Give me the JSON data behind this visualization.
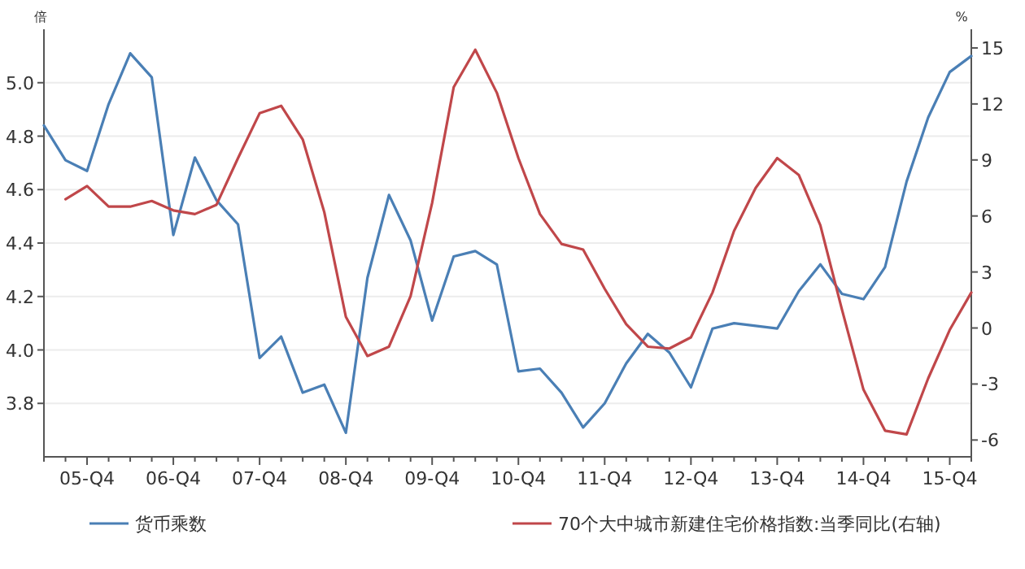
{
  "chart_data": {
    "type": "line",
    "ylabel": "倍",
    "y2label": "%",
    "categories": [
      null,
      null,
      "05-Q4",
      null,
      null,
      null,
      "06-Q4",
      null,
      null,
      null,
      "07-Q4",
      null,
      null,
      null,
      "08-Q4",
      null,
      null,
      null,
      "09-Q4",
      null,
      null,
      null,
      "10-Q4",
      null,
      null,
      null,
      "11-Q4",
      null,
      null,
      null,
      "12-Q4",
      null,
      null,
      null,
      "13-Q4",
      null,
      null,
      null,
      "14-Q4",
      null,
      null,
      null,
      "15-Q4",
      null
    ],
    "series": [
      {
        "name": "货币乘数",
        "color": "#4a7fb5",
        "values": [
          4.84,
          4.71,
          4.67,
          4.92,
          5.11,
          5.02,
          4.43,
          4.72,
          4.56,
          4.47,
          3.97,
          4.05,
          3.84,
          3.87,
          3.69,
          4.27,
          4.58,
          4.41,
          4.11,
          4.35,
          4.37,
          4.32,
          3.92,
          3.93,
          3.84,
          3.71,
          3.8,
          3.95,
          4.06,
          3.99,
          3.86,
          4.08,
          4.1,
          4.09,
          4.08,
          4.22,
          4.32,
          4.21,
          4.19,
          4.31,
          4.63,
          4.87,
          5.04,
          5.1
        ]
      },
      {
        "name": "70个大中城市新建住宅价格指数:当季同比(右轴)",
        "color": "#c0474a",
        "axis": "y2",
        "values": [
          null,
          6.9,
          7.6,
          6.5,
          6.5,
          6.8,
          6.3,
          6.1,
          6.6,
          9.1,
          11.5,
          11.9,
          10.1,
          6.2,
          0.6,
          -1.5,
          -1.0,
          1.7,
          6.7,
          12.9,
          14.9,
          12.6,
          9.1,
          6.1,
          4.5,
          4.2,
          2.1,
          0.2,
          -1.0,
          -1.1,
          -0.5,
          1.9,
          5.2,
          7.5,
          9.1,
          8.2,
          5.5,
          1.0,
          -3.3,
          -5.5,
          -5.7,
          -2.7,
          -0.1,
          1.9
        ]
      }
    ],
    "ylim": [
      3.6,
      5.2
    ],
    "yticks": [
      3.8,
      {
        "value": 4.0,
        "label": "4.0"
      },
      4.2,
      4.4,
      4.6,
      4.8,
      {
        "value": 5.0,
        "label": "5.0"
      }
    ],
    "y2lim": [
      -6.9,
      16
    ],
    "y2ticks": [
      -6,
      -3,
      0,
      3,
      6,
      9,
      12,
      15
    ],
    "grid": "y",
    "legend": "bottom"
  }
}
